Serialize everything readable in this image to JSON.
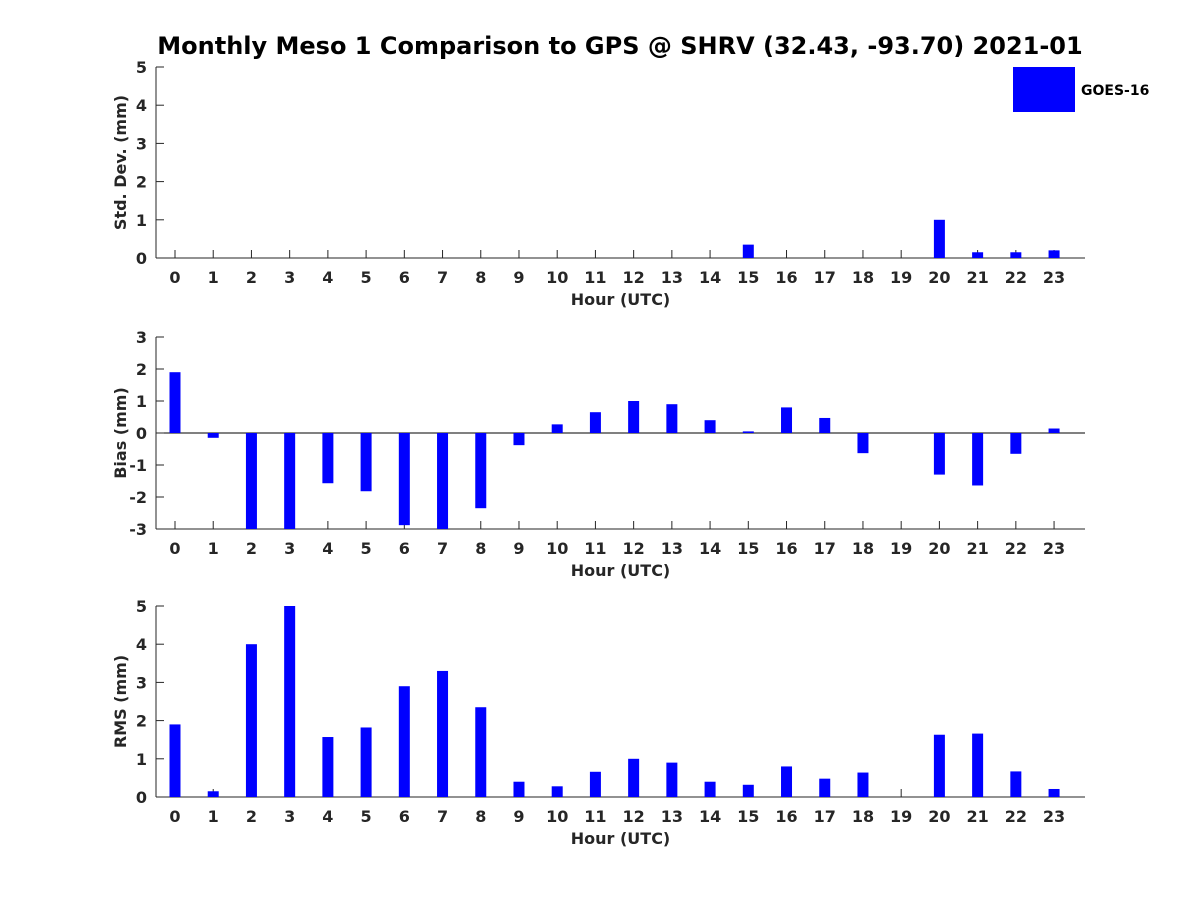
{
  "title": "Monthly Meso 1 Comparison to GPS @ SHRV (32.43, -93.70) 2021-01",
  "legend": {
    "label": "GOES-16",
    "color": "#0000ff",
    "placement": "top-right"
  },
  "bar_color": "#0000ff",
  "chart_data": [
    {
      "type": "bar",
      "categories": [
        "0",
        "1",
        "2",
        "3",
        "4",
        "5",
        "6",
        "7",
        "8",
        "9",
        "10",
        "11",
        "12",
        "13",
        "14",
        "15",
        "16",
        "17",
        "18",
        "19",
        "20",
        "21",
        "22",
        "23"
      ],
      "series": [
        {
          "name": "GOES-16",
          "values": [
            0,
            0,
            0,
            0,
            0,
            0,
            0,
            0,
            0,
            0,
            0,
            0,
            0,
            0,
            0,
            0.35,
            0,
            0,
            0,
            0,
            1.0,
            0.15,
            0.15,
            0.2
          ]
        }
      ],
      "xlabel": "Hour (UTC)",
      "ylabel": "Std. Dev. (mm)",
      "ylim": [
        0,
        5
      ],
      "yticks": [
        "0",
        "1",
        "2",
        "3",
        "4",
        "5"
      ]
    },
    {
      "type": "bar",
      "categories": [
        "0",
        "1",
        "2",
        "3",
        "4",
        "5",
        "6",
        "7",
        "8",
        "9",
        "10",
        "11",
        "12",
        "13",
        "14",
        "15",
        "16",
        "17",
        "18",
        "19",
        "20",
        "21",
        "22",
        "23"
      ],
      "series": [
        {
          "name": "GOES-16",
          "values": [
            1.9,
            -0.15,
            -3.0,
            -3.0,
            -1.57,
            -1.82,
            -2.88,
            -3.0,
            -2.35,
            -0.38,
            0.27,
            0.65,
            1.0,
            0.9,
            0.4,
            0.05,
            0.8,
            0.47,
            -0.63,
            0,
            -1.3,
            -1.64,
            -0.65,
            0.14
          ]
        }
      ],
      "xlabel": "Hour (UTC)",
      "ylabel": "Bias (mm)",
      "ylim": [
        -3,
        3
      ],
      "yticks": [
        "-3",
        "-2",
        "-1",
        "0",
        "1",
        "2",
        "3"
      ]
    },
    {
      "type": "bar",
      "categories": [
        "0",
        "1",
        "2",
        "3",
        "4",
        "5",
        "6",
        "7",
        "8",
        "9",
        "10",
        "11",
        "12",
        "13",
        "14",
        "15",
        "16",
        "17",
        "18",
        "19",
        "20",
        "21",
        "22",
        "23"
      ],
      "series": [
        {
          "name": "GOES-16",
          "values": [
            1.9,
            0.15,
            4.0,
            5.0,
            1.57,
            1.82,
            2.9,
            3.3,
            2.35,
            0.4,
            0.28,
            0.66,
            1.0,
            0.9,
            0.4,
            0.32,
            0.8,
            0.48,
            0.64,
            0,
            1.63,
            1.66,
            0.67,
            0.21
          ]
        }
      ],
      "xlabel": "Hour (UTC)",
      "ylabel": "RMS (mm)",
      "ylim": [
        0,
        5
      ],
      "yticks": [
        "0",
        "1",
        "2",
        "3",
        "4",
        "5"
      ]
    }
  ]
}
